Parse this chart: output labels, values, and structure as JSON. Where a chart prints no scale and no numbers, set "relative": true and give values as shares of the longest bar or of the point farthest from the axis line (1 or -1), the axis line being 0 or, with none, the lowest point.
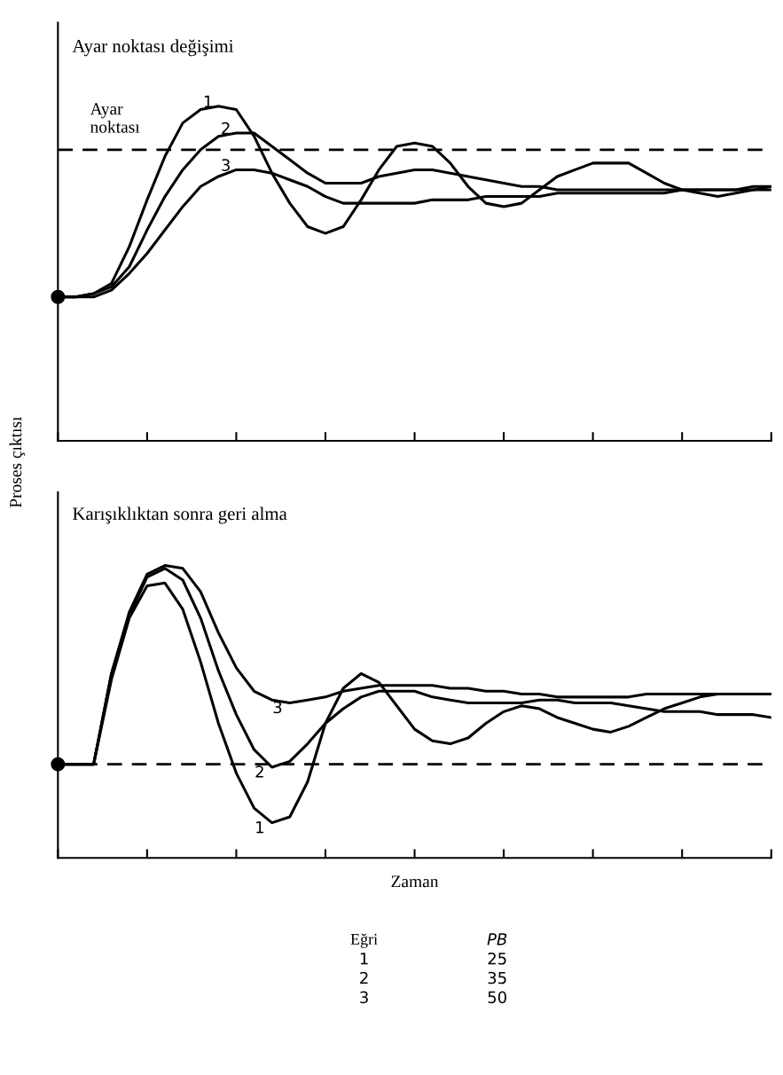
{
  "chart_data": [
    {
      "type": "line",
      "title": "Ayar noktası değişimi",
      "ylabel": "Proses çıktısı",
      "relative": true,
      "tick_labels": false,
      "grid": false,
      "legend": false,
      "categories": [
        null,
        null,
        null,
        null,
        null,
        null,
        null,
        null,
        null,
        null,
        null,
        null,
        null,
        null,
        null,
        null,
        null,
        null,
        null,
        null,
        null,
        null,
        null,
        null,
        null,
        null,
        null,
        null,
        null,
        null,
        null,
        null,
        null,
        null,
        null,
        null,
        null,
        null,
        null,
        null,
        null
      ],
      "series": [
        {
          "name": "1",
          "color": "#000000",
          "values": [
            0.43,
            0.43,
            0.44,
            0.47,
            0.58,
            0.72,
            0.85,
            0.95,
            0.99,
            1.0,
            0.99,
            0.91,
            0.8,
            0.71,
            0.64,
            0.62,
            0.64,
            0.72,
            0.81,
            0.88,
            0.89,
            0.88,
            0.83,
            0.76,
            0.71,
            0.7,
            0.71,
            0.75,
            0.79,
            0.81,
            0.83,
            0.83,
            0.83,
            0.8,
            0.77,
            0.75,
            0.74,
            0.73,
            0.74,
            0.75,
            0.76
          ]
        },
        {
          "name": "2",
          "color": "#000000",
          "values": [
            0.43,
            0.43,
            0.44,
            0.46,
            0.52,
            0.63,
            0.73,
            0.81,
            0.87,
            0.91,
            0.92,
            0.92,
            0.88,
            0.84,
            0.8,
            0.77,
            0.77,
            0.77,
            0.79,
            0.8,
            0.81,
            0.81,
            0.8,
            0.79,
            0.78,
            0.77,
            0.76,
            0.76,
            0.75,
            0.75,
            0.75,
            0.75,
            0.75,
            0.75,
            0.75,
            0.75,
            0.75,
            0.75,
            0.75,
            0.76,
            0.76
          ]
        },
        {
          "name": "3",
          "color": "#000000",
          "values": [
            0.43,
            0.43,
            0.43,
            0.45,
            0.5,
            0.56,
            0.63,
            0.7,
            0.76,
            0.79,
            0.81,
            0.81,
            0.8,
            0.78,
            0.76,
            0.73,
            0.71,
            0.71,
            0.71,
            0.71,
            0.71,
            0.72,
            0.72,
            0.72,
            0.73,
            0.73,
            0.73,
            0.73,
            0.74,
            0.74,
            0.74,
            0.74,
            0.74,
            0.74,
            0.74,
            0.75,
            0.75,
            0.75,
            0.75,
            0.75,
            0.75
          ]
        }
      ],
      "ref_lines": [
        {
          "axis": "y",
          "value": 0.87,
          "label": "Ayar noktası",
          "line_style": "dashed",
          "color": "#000000"
        }
      ]
    },
    {
      "type": "line",
      "title": "Karışıklıktan sonra geri alma",
      "xlabel": "Zaman",
      "relative": true,
      "tick_labels": false,
      "grid": false,
      "legend": false,
      "categories": [
        null,
        null,
        null,
        null,
        null,
        null,
        null,
        null,
        null,
        null,
        null,
        null,
        null,
        null,
        null,
        null,
        null,
        null,
        null,
        null,
        null,
        null,
        null,
        null,
        null,
        null,
        null,
        null,
        null,
        null,
        null,
        null,
        null,
        null,
        null,
        null,
        null,
        null,
        null,
        null,
        null
      ],
      "series": [
        {
          "name": "1",
          "color": "#000000",
          "values": [
            0.32,
            0.32,
            0.32,
            0.61,
            0.82,
            0.93,
            0.94,
            0.85,
            0.67,
            0.46,
            0.29,
            0.17,
            0.12,
            0.14,
            0.26,
            0.46,
            0.58,
            0.63,
            0.6,
            0.52,
            0.44,
            0.4,
            0.39,
            0.41,
            0.46,
            0.5,
            0.52,
            0.51,
            0.48,
            0.46,
            0.44,
            0.43,
            0.45,
            0.48,
            0.51,
            0.53,
            0.55,
            0.56,
            0.56,
            0.56,
            0.56
          ]
        },
        {
          "name": "2",
          "color": "#000000",
          "values": [
            0.32,
            0.32,
            0.32,
            0.63,
            0.83,
            0.96,
            0.99,
            0.95,
            0.82,
            0.64,
            0.49,
            0.37,
            0.31,
            0.33,
            0.39,
            0.46,
            0.51,
            0.55,
            0.57,
            0.57,
            0.57,
            0.55,
            0.54,
            0.53,
            0.53,
            0.53,
            0.53,
            0.54,
            0.54,
            0.53,
            0.53,
            0.53,
            0.52,
            0.51,
            0.5,
            0.5,
            0.5,
            0.49,
            0.49,
            0.49,
            0.48
          ]
        },
        {
          "name": "3",
          "color": "#000000",
          "values": [
            0.32,
            0.32,
            0.32,
            0.63,
            0.84,
            0.97,
            1.0,
            0.99,
            0.91,
            0.77,
            0.65,
            0.57,
            0.54,
            0.53,
            0.54,
            0.55,
            0.57,
            0.58,
            0.59,
            0.59,
            0.59,
            0.59,
            0.58,
            0.58,
            0.57,
            0.57,
            0.56,
            0.56,
            0.55,
            0.55,
            0.55,
            0.55,
            0.55,
            0.56,
            0.56,
            0.56,
            0.56,
            0.56,
            0.56,
            0.56,
            0.56
          ]
        }
      ],
      "ref_lines": [
        {
          "axis": "y",
          "value": 0.32,
          "line_style": "dashed",
          "color": "#000000"
        }
      ],
      "annotations": [
        "Eğri",
        "PB",
        "1",
        "25",
        "2",
        "35",
        "3",
        "50"
      ]
    }
  ]
}
